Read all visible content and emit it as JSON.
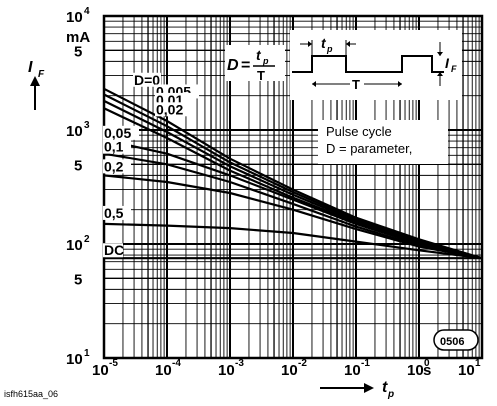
{
  "chart_data": {
    "type": "line",
    "x_scale": "log",
    "y_scale": "log",
    "xlim": [
      1e-05,
      10
    ],
    "ylim": [
      10,
      10000
    ],
    "grid": true,
    "x_axis": {
      "label": "t",
      "label_subscript": "p",
      "unit": "s",
      "ticks": [
        {
          "value": 1e-05,
          "base": "10",
          "exp": "-5"
        },
        {
          "value": 0.0001,
          "base": "10",
          "exp": "-4"
        },
        {
          "value": 0.001,
          "base": "10",
          "exp": "-3"
        },
        {
          "value": 0.01,
          "base": "10",
          "exp": "-2"
        },
        {
          "value": 0.1,
          "base": "10",
          "exp": "-1"
        },
        {
          "value": 1,
          "base": "10",
          "exp": "0"
        },
        {
          "value": 10,
          "base": "10",
          "exp": "1"
        }
      ]
    },
    "y_axis": {
      "label": "I",
      "label_subscript": "F",
      "unit": "mA",
      "ticks": [
        {
          "value": 10,
          "base": "10",
          "exp": "1"
        },
        {
          "value": 50,
          "base": "5",
          "exp": ""
        },
        {
          "value": 100,
          "base": "10",
          "exp": "2"
        },
        {
          "value": 500,
          "base": "5",
          "exp": ""
        },
        {
          "value": 1000,
          "base": "10",
          "exp": "3"
        },
        {
          "value": 5000,
          "base": "5",
          "exp": ""
        },
        {
          "value": 10000,
          "base": "10",
          "exp": "4"
        }
      ]
    },
    "series": [
      {
        "name": "D=0",
        "x": [
          1e-05,
          0.0001,
          0.001,
          0.01,
          0.1,
          1,
          10
        ],
        "y": [
          2300,
          1200,
          560,
          300,
          170,
          110,
          75
        ]
      },
      {
        "name": "0,005",
        "x": [
          1e-05,
          0.0001,
          0.001,
          0.01,
          0.1,
          1,
          10
        ],
        "y": [
          2050,
          1080,
          520,
          285,
          165,
          108,
          75
        ]
      },
      {
        "name": "0,01",
        "x": [
          1e-05,
          0.0001,
          0.001,
          0.01,
          0.1,
          1,
          10
        ],
        "y": [
          1800,
          960,
          480,
          270,
          160,
          105,
          75
        ]
      },
      {
        "name": "0,02",
        "x": [
          1e-05,
          0.0001,
          0.001,
          0.01,
          0.1,
          1,
          10
        ],
        "y": [
          1550,
          850,
          440,
          255,
          155,
          103,
          75
        ]
      },
      {
        "name": "0,05",
        "x": [
          1e-05,
          0.0001,
          0.001,
          0.01,
          0.1,
          1,
          10
        ],
        "y": [
          820,
          620,
          400,
          245,
          150,
          100,
          75
        ]
      },
      {
        "name": "0,1",
        "x": [
          1e-05,
          0.0001,
          0.001,
          0.01,
          0.1,
          1,
          10
        ],
        "y": [
          620,
          500,
          350,
          225,
          142,
          97,
          75
        ]
      },
      {
        "name": "0,2",
        "x": [
          1e-05,
          0.0001,
          0.001,
          0.01,
          0.1,
          1,
          10
        ],
        "y": [
          400,
          350,
          280,
          200,
          135,
          95,
          75
        ]
      },
      {
        "name": "0,5",
        "x": [
          1e-05,
          0.0001,
          0.001,
          0.01,
          0.1,
          1,
          10
        ],
        "y": [
          150,
          145,
          138,
          125,
          105,
          88,
          75
        ]
      },
      {
        "name": "DC",
        "x": [
          1e-05,
          0.0001,
          0.001,
          0.01,
          0.1,
          1,
          10
        ],
        "y": [
          75,
          75,
          75,
          75,
          75,
          75,
          75
        ]
      }
    ]
  },
  "formula": {
    "lhs": "D",
    "equals": "=",
    "numerator": "t",
    "numerator_sub": "p",
    "denominator": "T"
  },
  "pulse_diagram": {
    "tp_label": "t",
    "tp_sub": "p",
    "T_label": "T",
    "IF_label": "I",
    "IF_sub": "F"
  },
  "annotation": {
    "line1": "Pulse cycle",
    "line2": "D = parameter,"
  },
  "stamp": "0506",
  "footer": "isfh615aa_06"
}
